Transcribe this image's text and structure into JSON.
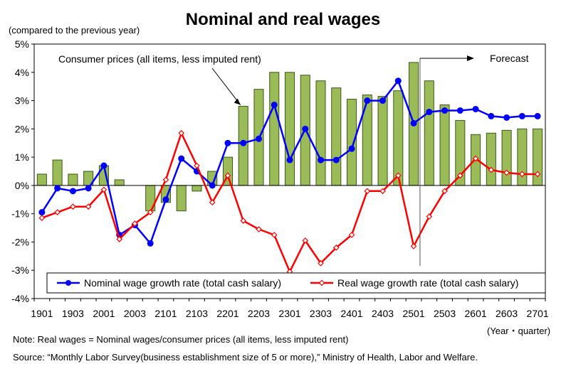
{
  "chart_data": {
    "type": "bar",
    "title": "Nominal and real wages",
    "ylabel": "(compared to the previous year)",
    "xlabel": "(Year・quarter)",
    "ylim": [
      -4,
      5
    ],
    "yticks": [
      -4,
      -3,
      -2,
      -1,
      0,
      1,
      2,
      3,
      4,
      5
    ],
    "ytick_labels": [
      "-4%",
      "-3%",
      "-2%",
      "-1%",
      "0%",
      "1%",
      "2%",
      "3%",
      "4%",
      "5%"
    ],
    "categories": [
      "1901",
      "1902",
      "1903",
      "1904",
      "2001",
      "2002",
      "2003",
      "2004",
      "2101",
      "2102",
      "2103",
      "2104",
      "2201",
      "2202",
      "2203",
      "2204",
      "2301",
      "2302",
      "2303",
      "2304",
      "2401",
      "2402",
      "2403",
      "2404",
      "2501",
      "2502",
      "2503",
      "2504",
      "2601",
      "2602",
      "2603",
      "2604",
      "2701"
    ],
    "xtick_labels": [
      "1901",
      "1903",
      "2001",
      "2003",
      "2101",
      "2103",
      "2201",
      "2203",
      "2301",
      "2303",
      "2401",
      "2403",
      "2501",
      "2503",
      "2601",
      "2603",
      "2701"
    ],
    "series": [
      {
        "name": "Consumer prices (all items, less imputed rent)",
        "kind": "bar",
        "color": "#9bbb59",
        "values": [
          0.4,
          0.9,
          0.4,
          0.5,
          0.7,
          0.2,
          0.0,
          -0.9,
          -0.6,
          -0.9,
          -0.2,
          0.5,
          1.0,
          2.8,
          3.4,
          4.0,
          4.0,
          3.9,
          3.7,
          3.45,
          3.05,
          3.2,
          3.15,
          3.35,
          4.35,
          3.7,
          2.85,
          2.3,
          1.8,
          1.85,
          1.95,
          2.0,
          2.0
        ]
      },
      {
        "name": "Nominal wage growth rate (total cash salary)",
        "kind": "line",
        "color": "#0000ff",
        "values": [
          -0.95,
          -0.1,
          -0.2,
          -0.1,
          0.7,
          -1.75,
          -1.4,
          -2.05,
          -0.5,
          0.95,
          0.5,
          0.0,
          1.5,
          1.5,
          1.65,
          2.85,
          0.9,
          2.0,
          0.9,
          0.9,
          1.3,
          3.0,
          3.0,
          3.7,
          2.2,
          2.6,
          2.65,
          2.65,
          2.7,
          2.45,
          2.4,
          2.45,
          2.45
        ]
      },
      {
        "name": "Real wage growth rate (total cash salary)",
        "kind": "line",
        "color": "#ff0000",
        "values": [
          -1.15,
          -0.95,
          -0.75,
          -0.75,
          -0.15,
          -1.9,
          -1.35,
          -0.95,
          0.2,
          1.85,
          0.7,
          -0.6,
          0.35,
          -1.25,
          -1.55,
          -1.75,
          -3.05,
          -1.95,
          -2.75,
          -2.2,
          -1.75,
          -0.2,
          -0.2,
          0.35,
          -2.15,
          -1.1,
          -0.2,
          0.35,
          0.95,
          0.55,
          0.45,
          0.4,
          0.4
        ]
      }
    ],
    "annotations": {
      "consumer_prices_label": "Consumer prices (all items, less imputed rent)",
      "forecast_label": "Forecast",
      "forecast_start_category": "2502"
    },
    "legend": {
      "placement": "bottom",
      "entries": [
        "Nominal wage growth rate (total cash salary)",
        "Real wage growth rate (total cash salary)"
      ]
    },
    "grid": false
  },
  "note": "Note: Real wages = Nominal wages/consumer prices (all items, less imputed rent)",
  "source": "Source: “Monthly Labor Survey(business establishment size of 5 or more),” Ministry of Health, Labor and Welfare."
}
